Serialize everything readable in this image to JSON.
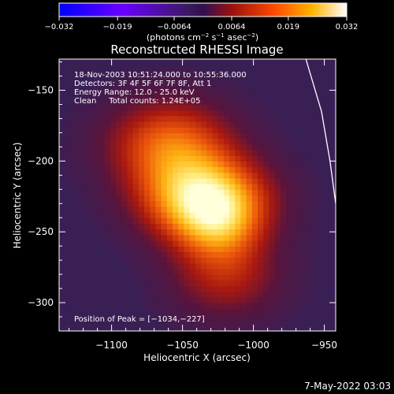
{
  "chart_data": {
    "type": "heatmap",
    "title": "Reconstructed RHESSI Image",
    "xlabel": "Heliocentric X (arcsec)",
    "ylabel": "Heliocentric Y (arcsec)",
    "xlim": [
      -1137,
      -942
    ],
    "ylim": [
      -320,
      -128
    ],
    "x_ticks": [
      {
        "value": -1100,
        "label": "−1100"
      },
      {
        "value": -1050,
        "label": "−1050"
      },
      {
        "value": -1000,
        "label": "−1000"
      },
      {
        "value": -950,
        "label": "−950"
      }
    ],
    "y_ticks": [
      {
        "value": -150,
        "label": "−150"
      },
      {
        "value": -200,
        "label": "−200"
      },
      {
        "value": -250,
        "label": "−250"
      },
      {
        "value": -300,
        "label": "−300"
      }
    ],
    "colorbar": {
      "range": [
        -0.032,
        0.032
      ],
      "ticks": [
        {
          "value": -0.032,
          "label": "−0.032"
        },
        {
          "value": -0.019,
          "label": "−0.019"
        },
        {
          "value": -0.0064,
          "label": "−0.0064"
        },
        {
          "value": 0.0064,
          "label": "0.0064"
        },
        {
          "value": 0.019,
          "label": "0.019"
        },
        {
          "value": 0.032,
          "label": "0.032"
        }
      ],
      "unit_base": "(photons cm",
      "unit_exp1": "−2",
      "unit_mid": " s",
      "unit_exp2": "−1",
      "unit_mid2": " asec",
      "unit_exp3": "−2",
      "unit_end": ")"
    },
    "annotations": [
      "18-Nov-2003 10:51:24.000 to 10:55:36.000",
      "Detectors: 3F 4F 5F 6F 7F 8F, Att 1",
      "Energy Range: 12.0 - 25.0 keV",
      "Clean     Total counts: 1.24E+05"
    ],
    "peak_label": "Position of Peak = [−1034,−227]",
    "peak_position": [
      -1034,
      -227
    ],
    "limb_curve": [
      [
        -963,
        -128
      ],
      [
        -952,
        -165
      ],
      [
        -946,
        -200
      ],
      [
        -942,
        -230
      ]
    ]
  },
  "footer_date": "7-May-2022 03:03"
}
